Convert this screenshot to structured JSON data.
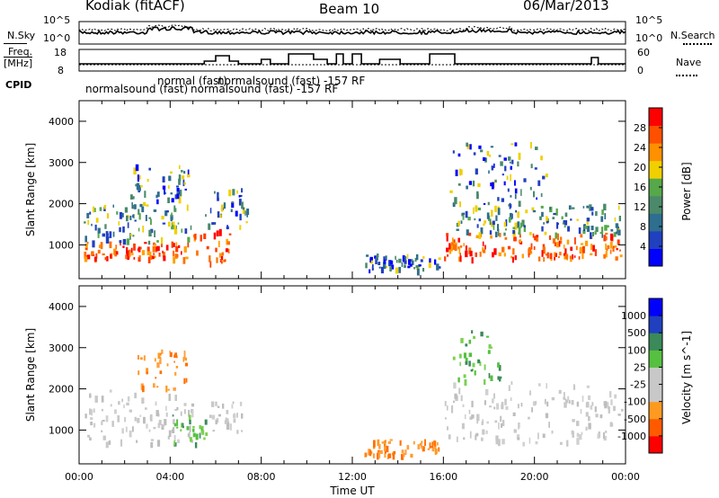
{
  "header": {
    "title": "Kodiak (fitACF)",
    "beam": "Beam 10",
    "date": "06/Mar/2013"
  },
  "noise_panel": {
    "left_label": "N.Sky",
    "right_label": "N.Search",
    "left_ticks": [
      "10^5",
      "10^0"
    ],
    "right_ticks": [
      "10^5",
      "10^0"
    ]
  },
  "freq_panel": {
    "left_label_line1": "Freq.",
    "left_label_line2": "[MHz]",
    "right_label": "Nave",
    "left_ticks": [
      "18",
      "8"
    ],
    "right_ticks": [
      "60",
      "0"
    ]
  },
  "cpid": {
    "label": "CPID",
    "entries": [
      {
        "text": "normalsound (fast)"
      },
      {
        "text": "normal (fast)"
      },
      {
        "text": "normalsound (fast) -157 RF"
      },
      {
        "text": "normalsound (fast) -157 RF"
      }
    ]
  },
  "x_axis": {
    "label": "Time UT",
    "ticks": [
      "00:00",
      "04:00",
      "08:00",
      "12:00",
      "16:00",
      "20:00",
      "00:00"
    ]
  },
  "chart_data": [
    {
      "type": "heatmap",
      "name": "Power",
      "xlabel": "Time UT",
      "ylabel": "Slant Range [km]",
      "xlim": [
        0,
        24
      ],
      "ylim": [
        180,
        4500
      ],
      "yticks": [
        1000,
        2000,
        3000,
        4000
      ],
      "colorbar": {
        "label": "Power [dB]",
        "ticks": [
          "28",
          "24",
          "20",
          "16",
          "12",
          "8",
          "4"
        ],
        "colors": [
          "#0000ff",
          "#2040c0",
          "#2e6e8e",
          "#4a8a6a",
          "#56a84a",
          "#f0d000",
          "#ff9000",
          "#ff5000",
          "#ff0000"
        ]
      },
      "features": [
        {
          "t0": 0.2,
          "t1": 4.9,
          "r0": 700,
          "r1": 1100,
          "level": "high"
        },
        {
          "t0": 0.2,
          "t1": 5.0,
          "r0": 1100,
          "r1": 2000,
          "level": "mid"
        },
        {
          "t0": 2.0,
          "t1": 4.8,
          "r0": 2000,
          "r1": 3000,
          "level": "low"
        },
        {
          "t0": 5.0,
          "t1": 6.6,
          "r0": 600,
          "r1": 1400,
          "level": "high"
        },
        {
          "t0": 5.5,
          "t1": 7.5,
          "r0": 1400,
          "r1": 2400,
          "level": "low"
        },
        {
          "t0": 12.5,
          "t1": 15.8,
          "r0": 400,
          "r1": 800,
          "level": "low"
        },
        {
          "t0": 16.0,
          "t1": 23.8,
          "r0": 700,
          "r1": 1300,
          "level": "high"
        },
        {
          "t0": 16.5,
          "t1": 23.8,
          "r0": 1300,
          "r1": 2000,
          "level": "mid"
        },
        {
          "t0": 16.2,
          "t1": 20.5,
          "r0": 2000,
          "r1": 3500,
          "level": "low"
        }
      ]
    },
    {
      "type": "heatmap",
      "name": "Velocity",
      "xlabel": "Time UT",
      "ylabel": "Slant Range [km]",
      "xlim": [
        0,
        24
      ],
      "ylim": [
        180,
        4500
      ],
      "yticks": [
        1000,
        2000,
        3000,
        4000
      ],
      "colorbar": {
        "label": "Velocity [m s^-1]",
        "ticks": [
          "1000",
          "500",
          "100",
          "25",
          "-25",
          "-100",
          "-500",
          "-1000"
        ],
        "colors": [
          "#ff0000",
          "#ff5a00",
          "#ff9a20",
          "#c8c8c8",
          "#c8c8c8",
          "#56c040",
          "#3a8a5a",
          "#2040c0",
          "#0000ff"
        ]
      },
      "features": [
        {
          "t0": 0.2,
          "t1": 5.0,
          "r0": 700,
          "r1": 2000,
          "level": "gray"
        },
        {
          "t0": 2.5,
          "t1": 4.7,
          "r0": 2000,
          "r1": 3000,
          "level": "orange"
        },
        {
          "t0": 4.0,
          "t1": 5.6,
          "r0": 700,
          "r1": 1400,
          "level": "green"
        },
        {
          "t0": 5.6,
          "t1": 7.2,
          "r0": 1000,
          "r1": 1700,
          "level": "gray"
        },
        {
          "t0": 12.5,
          "t1": 15.8,
          "r0": 400,
          "r1": 800,
          "level": "orange"
        },
        {
          "t0": 16.0,
          "t1": 23.8,
          "r0": 700,
          "r1": 2200,
          "level": "gray"
        },
        {
          "t0": 16.4,
          "t1": 18.5,
          "r0": 2200,
          "r1": 3500,
          "level": "green"
        }
      ]
    }
  ]
}
